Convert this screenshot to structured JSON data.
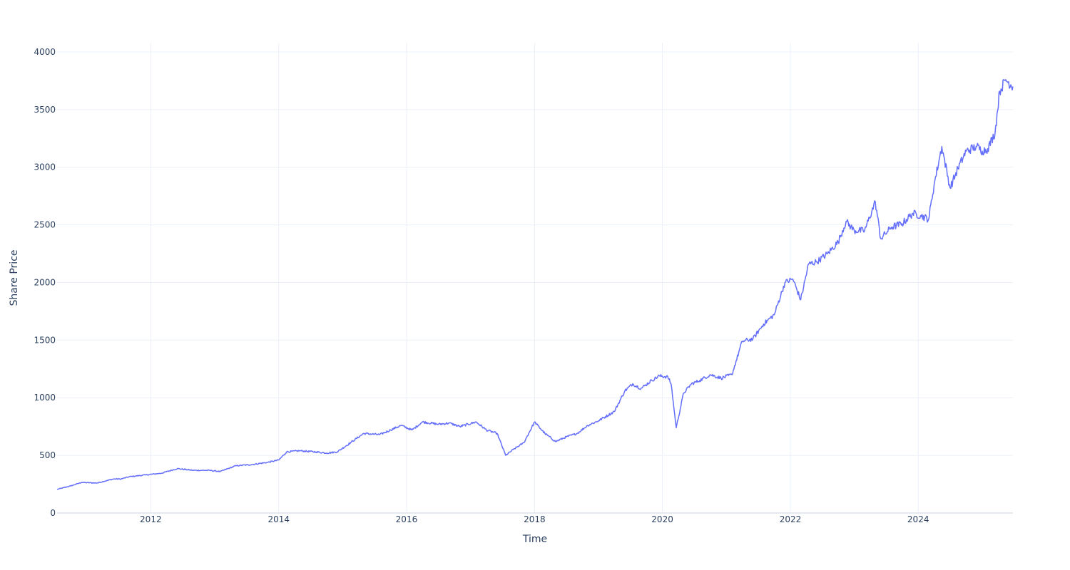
{
  "chart_data": {
    "type": "line",
    "title": "",
    "xlabel": "Time",
    "ylabel": "Share Price",
    "xlim": [
      "2010-07-15",
      "2025-06-25"
    ],
    "ylim": [
      0,
      4080
    ],
    "grid": true,
    "legend": "none",
    "line_color": "#636efa",
    "grid_color": "#ebf0f8",
    "text_color": "#2a3f5f",
    "x_ticks": [
      "2012",
      "2014",
      "2016",
      "2018",
      "2020",
      "2022",
      "2024"
    ],
    "y_ticks": [
      0,
      500,
      1000,
      1500,
      2000,
      2500,
      3000,
      3500,
      4000
    ],
    "series": [
      {
        "x": [
          "2010-07-15",
          "2010-10-01",
          "2010-12-01",
          "2011-03-01",
          "2011-06-01",
          "2011-07-15",
          "2011-09-01",
          "2011-12-01",
          "2012-03-01",
          "2012-06-01",
          "2012-09-01",
          "2012-12-01",
          "2013-02-01",
          "2013-05-01",
          "2013-08-01",
          "2013-11-01",
          "2014-01-01",
          "2014-02-15",
          "2014-05-01",
          "2014-08-01",
          "2014-10-01",
          "2014-12-01",
          "2015-02-15",
          "2015-05-01",
          "2015-08-01",
          "2015-10-01",
          "2015-12-01",
          "2016-02-01",
          "2016-04-01",
          "2016-07-01",
          "2016-09-01",
          "2016-11-01",
          "2017-02-01",
          "2017-04-01",
          "2017-06-01",
          "2017-07-20",
          "2017-09-01",
          "2017-11-01",
          "2018-01-01",
          "2018-03-01",
          "2018-05-01",
          "2018-07-01",
          "2018-09-01",
          "2018-11-01",
          "2019-01-01",
          "2019-04-01",
          "2019-06-01",
          "2019-07-15",
          "2019-09-01",
          "2019-11-01",
          "2019-12-15",
          "2020-02-01",
          "2020-02-20",
          "2020-03-20",
          "2020-05-01",
          "2020-06-15",
          "2020-08-01",
          "2020-10-01",
          "2020-12-01",
          "2021-02-01",
          "2021-04-01",
          "2021-06-01",
          "2021-08-01",
          "2021-10-01",
          "2021-12-01",
          "2022-01-15",
          "2022-03-01",
          "2022-04-15",
          "2022-06-01",
          "2022-08-01",
          "2022-10-01",
          "2022-11-15",
          "2023-01-01",
          "2023-03-01",
          "2023-05-01",
          "2023-06-01",
          "2023-08-01",
          "2023-10-01",
          "2023-12-01",
          "2024-01-15",
          "2024-03-01",
          "2024-04-01",
          "2024-05-15",
          "2024-07-01",
          "2024-08-15",
          "2024-10-01",
          "2024-12-01",
          "2025-01-01",
          "2025-02-01",
          "2025-03-15",
          "2025-04-10",
          "2025-05-15",
          "2025-06-25"
        ],
        "y": [
          205,
          235,
          265,
          260,
          295,
          295,
          315,
          330,
          345,
          385,
          370,
          370,
          360,
          410,
          420,
          440,
          460,
          530,
          540,
          530,
          520,
          530,
          610,
          690,
          680,
          720,
          760,
          720,
          790,
          770,
          780,
          750,
          790,
          720,
          690,
          500,
          550,
          610,
          790,
          690,
          620,
          660,
          690,
          760,
          800,
          880,
          1060,
          1120,
          1080,
          1150,
          1190,
          1180,
          1120,
          740,
          1040,
          1120,
          1150,
          1200,
          1170,
          1200,
          1490,
          1510,
          1640,
          1720,
          2000,
          2030,
          1850,
          2160,
          2180,
          2250,
          2350,
          2530,
          2450,
          2450,
          2700,
          2380,
          2480,
          2510,
          2600,
          2580,
          2550,
          2850,
          3180,
          2820,
          2990,
          3140,
          3180,
          3140,
          3160,
          3300,
          3660,
          3760,
          3700
        ]
      }
    ]
  }
}
